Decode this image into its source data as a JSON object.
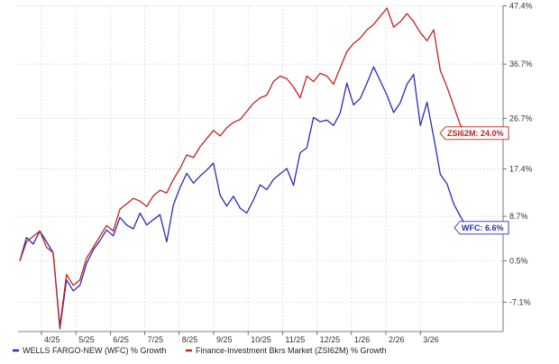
{
  "chart_data": {
    "type": "line",
    "title": "",
    "xlabel": "",
    "ylabel": "",
    "x_ticks": [
      "4/25",
      "5/25",
      "6/25",
      "7/25",
      "8/25",
      "9/25",
      "10/25",
      "11/25",
      "12/25",
      "1/26",
      "2/26",
      "3/26"
    ],
    "y_ticks": [
      "47.4%",
      "36.7%",
      "26.7%",
      "17.4%",
      "8.7%",
      "0.5%",
      "-7.1%"
    ],
    "ylim": [
      -12.5,
      47.5
    ],
    "grid": true,
    "legend_position": "bottom-left",
    "series": [
      {
        "name": "WELLS FARGO-NEW (WFC) % Growth",
        "color": "#2b2bb5",
        "end_label": "WFC: 6.6%",
        "values": [
          0.5,
          4.8,
          3.6,
          6.0,
          4.0,
          2.0,
          -12.0,
          -3.0,
          -5.0,
          -4.0,
          0.0,
          2.5,
          4.2,
          6.2,
          5.1,
          8.5,
          7.1,
          6.4,
          9.3,
          7.1,
          8.1,
          9.0,
          4.0,
          10.8,
          14.0,
          16.6,
          14.8,
          16.1,
          17.2,
          18.5,
          12.6,
          10.6,
          12.4,
          10.2,
          9.3,
          11.7,
          14.5,
          13.6,
          15.5,
          16.5,
          17.5,
          14.4,
          20.4,
          21.3,
          26.9,
          26.1,
          26.4,
          25.4,
          27.7,
          33.2,
          29.2,
          30.4,
          33.2,
          36.2,
          33.6,
          31.0,
          27.8,
          29.6,
          33.0,
          34.8,
          25.4,
          29.7,
          23.3,
          16.4,
          14.7,
          11.0,
          8.7,
          6.6
        ]
      },
      {
        "name": "Finance-Investment Bkrs Market (ZSI62M) % Growth",
        "color": "#c22222",
        "end_label": "ZSI62M: 24.0%",
        "values": [
          0.5,
          4.0,
          5.0,
          6.0,
          3.0,
          2.0,
          -11.5,
          -2.0,
          -4.0,
          -3.0,
          1.0,
          3.0,
          5.0,
          7.0,
          6.0,
          10.0,
          11.0,
          12.0,
          11.5,
          10.5,
          12.5,
          13.5,
          13.0,
          15.5,
          17.5,
          20.0,
          19.5,
          21.5,
          23.0,
          24.5,
          23.5,
          25.0,
          26.0,
          26.5,
          28.0,
          29.5,
          30.5,
          31.0,
          33.5,
          34.5,
          34.0,
          32.5,
          30.5,
          34.5,
          33.5,
          35.0,
          34.5,
          33.0,
          36.0,
          39.0,
          40.5,
          41.5,
          43.0,
          44.0,
          45.5,
          47.0,
          43.5,
          44.5,
          46.0,
          44.5,
          42.5,
          41.0,
          43.0,
          35.5,
          32.5,
          29.0,
          25.5,
          24.0
        ]
      }
    ],
    "price_path_legend": []
  }
}
